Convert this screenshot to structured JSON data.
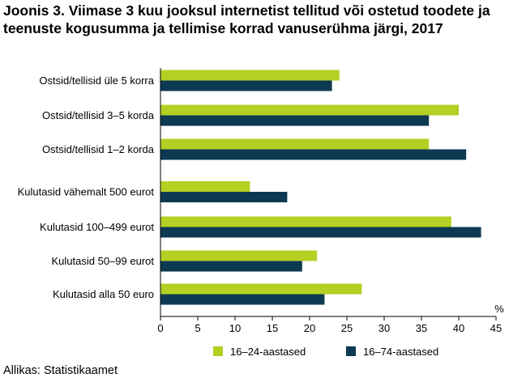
{
  "chart_data": {
    "type": "bar",
    "orientation": "horizontal",
    "title": "Joonis 3. Viimase 3 kuu jooksul internetist tellitud või ostetud toodete ja teenuste kogusumma ja tellimise korrad vanuserühma järgi, 2017",
    "categories": [
      "Ostsid/tellisid üle 5 korra",
      "Ostsid/tellisid 3–5 korda",
      "Ostsid/tellisid 1–2 korda",
      "Kulutasid vähemalt 500 eurot",
      "Kulutasid 100–499 eurot",
      "Kulutasid 50–99 eurot",
      "Kulutasid alla 50 euro"
    ],
    "series": [
      {
        "name": "16–24-aastased",
        "color": "#b5cf22",
        "values": [
          24,
          40,
          36,
          12,
          39,
          21,
          27
        ]
      },
      {
        "name": "16–74-aastased",
        "color": "#0d3a52",
        "values": [
          23,
          36,
          41,
          17,
          43,
          19,
          22
        ]
      }
    ],
    "xlim": [
      0,
      45
    ],
    "xticks": [
      0,
      5,
      10,
      15,
      20,
      25,
      30,
      35,
      40,
      45
    ],
    "unit": "%",
    "grid": false,
    "legend_position": "bottom"
  },
  "source": "Allikas: Statistikaamet"
}
